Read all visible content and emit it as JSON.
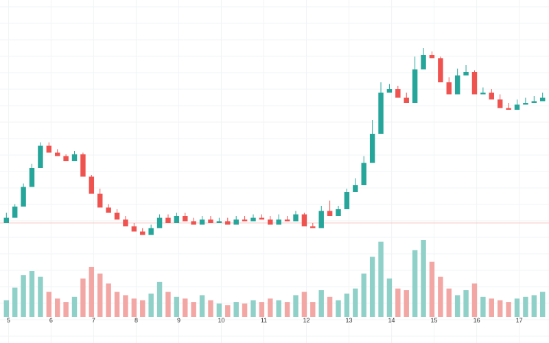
{
  "chart_data": {
    "type": "candlestick",
    "grid": true,
    "colors": {
      "up": "#26a69a",
      "down": "#ef5350",
      "volume_up": "#8fd1c9",
      "volume_down": "#f3a7a5",
      "grid": "#f2f3f5",
      "baseline": "#f7c6c6",
      "tick_text": "#333333"
    },
    "x_ticks": [
      "5",
      "6",
      "7",
      "8",
      "9",
      "10",
      "11",
      "12",
      "13",
      "14",
      "15",
      "16",
      "17"
    ],
    "x": [
      4.95,
      5.15,
      5.35,
      5.55,
      5.75,
      5.95,
      6.15,
      6.35,
      6.55,
      6.75,
      6.95,
      7.15,
      7.35,
      7.55,
      7.75,
      7.95,
      8.15,
      8.35,
      8.55,
      8.75,
      8.95,
      9.15,
      9.35,
      9.55,
      9.75,
      9.95,
      10.15,
      10.35,
      10.55,
      10.75,
      10.95,
      11.15,
      11.35,
      11.55,
      11.75,
      11.95,
      12.15,
      12.35,
      12.55,
      12.75,
      12.95,
      13.15,
      13.35,
      13.55,
      13.75,
      13.95,
      14.15,
      14.35,
      14.55,
      14.75,
      14.95,
      15.15,
      15.35,
      15.55,
      15.75,
      15.95,
      16.15,
      16.35,
      16.55,
      16.75,
      16.95,
      17.15,
      17.35,
      17.55
    ],
    "candles": [
      [
        106,
        112,
        108,
        118
      ],
      [
        112,
        125,
        118,
        128
      ],
      [
        125,
        148,
        135,
        152
      ],
      [
        148,
        170,
        155,
        175
      ],
      [
        170,
        196,
        180,
        200
      ],
      [
        196,
        188,
        190,
        200
      ],
      [
        188,
        184,
        186,
        192
      ],
      [
        184,
        178,
        182,
        186
      ],
      [
        178,
        186,
        180,
        190
      ],
      [
        186,
        160,
        172,
        188
      ],
      [
        160,
        140,
        152,
        162
      ],
      [
        140,
        124,
        130,
        146
      ],
      [
        124,
        118,
        120,
        128
      ],
      [
        118,
        110,
        112,
        122
      ],
      [
        110,
        102,
        104,
        114
      ],
      [
        102,
        96,
        98,
        106
      ],
      [
        96,
        92,
        94,
        100
      ],
      [
        92,
        100,
        96,
        104
      ],
      [
        100,
        112,
        106,
        116
      ],
      [
        112,
        106,
        110,
        116
      ],
      [
        106,
        114,
        110,
        118
      ],
      [
        114,
        108,
        112,
        118
      ],
      [
        108,
        104,
        106,
        112
      ],
      [
        104,
        110,
        106,
        114
      ],
      [
        110,
        106,
        108,
        114
      ],
      [
        106,
        108,
        106,
        112
      ],
      [
        108,
        104,
        106,
        112
      ],
      [
        104,
        110,
        106,
        114
      ],
      [
        110,
        108,
        110,
        114
      ],
      [
        108,
        112,
        110,
        116
      ],
      [
        112,
        110,
        112,
        116
      ],
      [
        110,
        104,
        106,
        114
      ],
      [
        104,
        110,
        106,
        116
      ],
      [
        110,
        108,
        110,
        114
      ],
      [
        108,
        116,
        110,
        120
      ],
      [
        116,
        102,
        110,
        118
      ],
      [
        102,
        100,
        102,
        106
      ],
      [
        100,
        120,
        104,
        126
      ],
      [
        120,
        114,
        118,
        132
      ],
      [
        114,
        122,
        118,
        126
      ],
      [
        122,
        142,
        130,
        146
      ],
      [
        142,
        150,
        146,
        158
      ],
      [
        150,
        176,
        160,
        184
      ],
      [
        176,
        210,
        190,
        226
      ],
      [
        210,
        258,
        232,
        270
      ],
      [
        258,
        262,
        262,
        268
      ],
      [
        262,
        252,
        258,
        266
      ],
      [
        252,
        246,
        248,
        258
      ],
      [
        246,
        285,
        270,
        300
      ],
      [
        285,
        302,
        294,
        310
      ],
      [
        302,
        298,
        300,
        306
      ],
      [
        298,
        270,
        284,
        300
      ],
      [
        270,
        256,
        262,
        276
      ],
      [
        256,
        278,
        266,
        286
      ],
      [
        278,
        282,
        280,
        290
      ],
      [
        282,
        256,
        268,
        284
      ],
      [
        256,
        258,
        256,
        264
      ],
      [
        258,
        250,
        252,
        262
      ],
      [
        250,
        240,
        246,
        256
      ],
      [
        240,
        238,
        238,
        246
      ],
      [
        238,
        244,
        240,
        250
      ],
      [
        244,
        246,
        244,
        252
      ],
      [
        246,
        248,
        246,
        254
      ],
      [
        248,
        252,
        250,
        258
      ]
    ],
    "volume": [
      20,
      35,
      50,
      55,
      48,
      30,
      22,
      18,
      24,
      46,
      60,
      52,
      40,
      30,
      26,
      22,
      20,
      28,
      42,
      30,
      24,
      22,
      18,
      26,
      20,
      16,
      14,
      18,
      16,
      20,
      18,
      22,
      20,
      18,
      26,
      30,
      18,
      32,
      24,
      20,
      28,
      34,
      52,
      72,
      90,
      46,
      34,
      32,
      80,
      92,
      66,
      48,
      34,
      26,
      32,
      40,
      24,
      22,
      20,
      18,
      22,
      24,
      26,
      30
    ]
  }
}
